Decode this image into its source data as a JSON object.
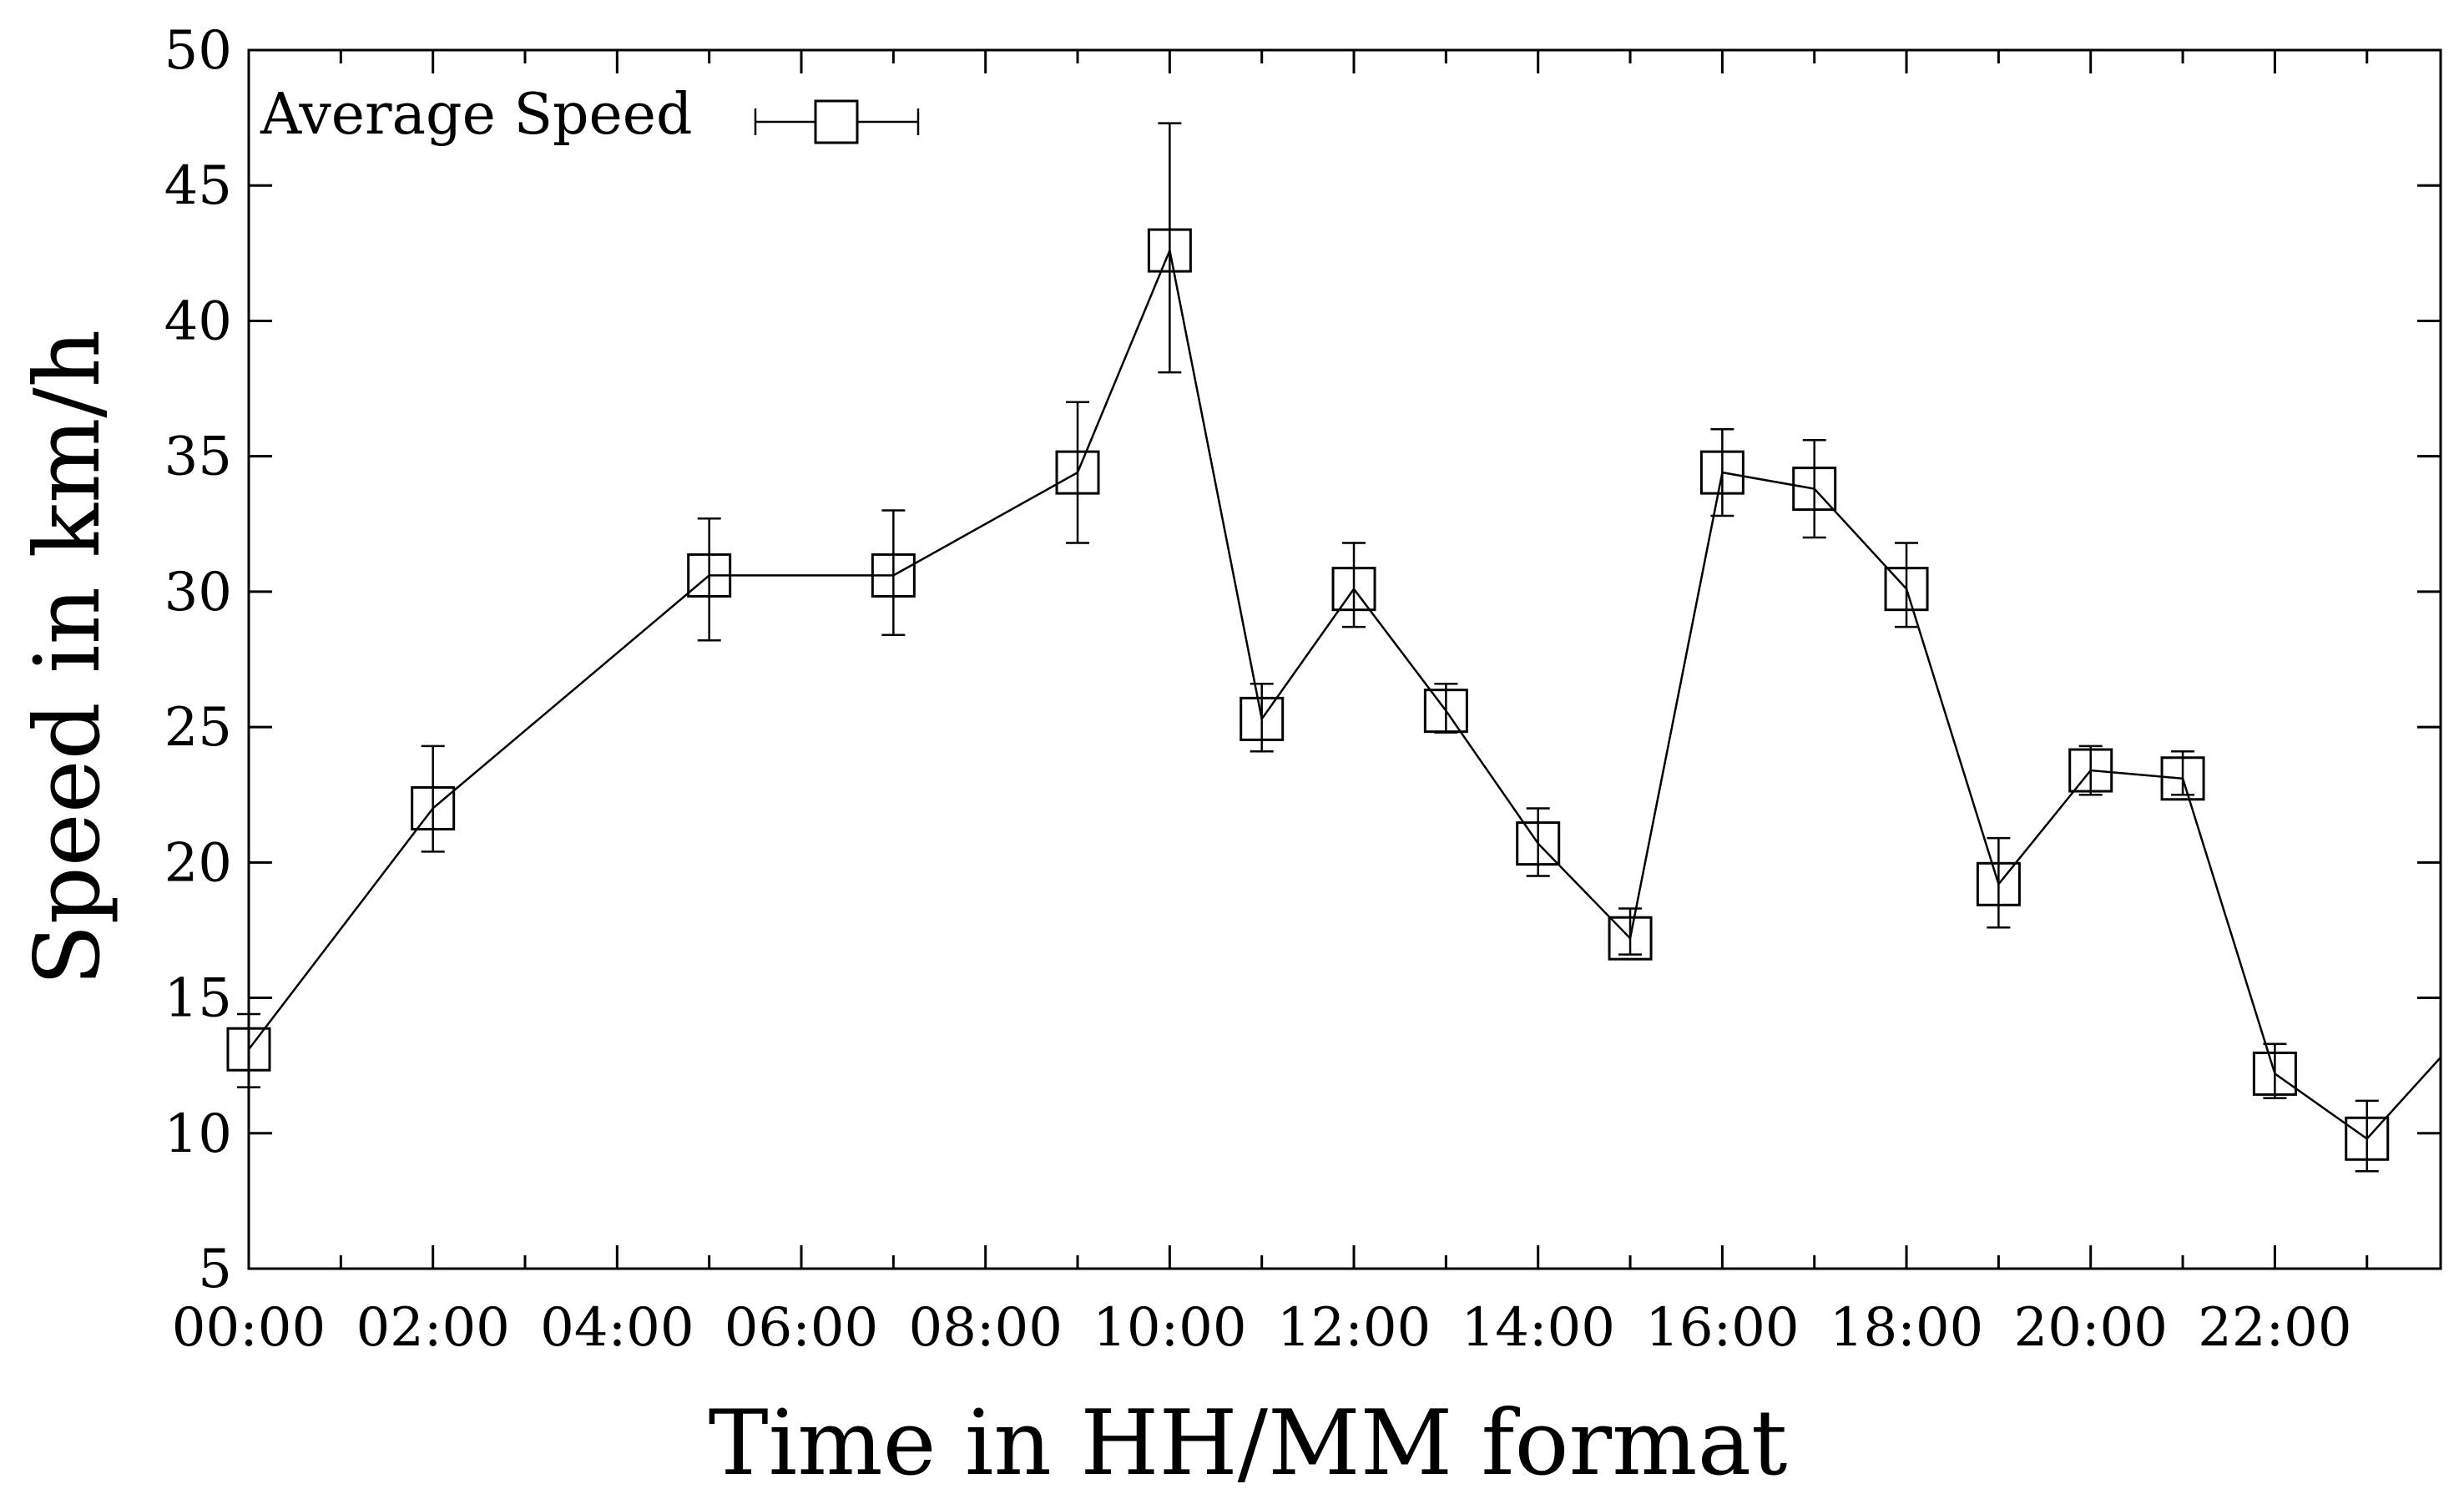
{
  "chart_data": {
    "type": "line",
    "xlabel": "Time in HH/MM format",
    "ylabel": "Speed in km/h",
    "xlim": [
      0,
      23.8
    ],
    "ylim": [
      5,
      50
    ],
    "x_ticks": [
      "00:00",
      "02:00",
      "04:00",
      "06:00",
      "08:00",
      "10:00",
      "12:00",
      "14:00",
      "16:00",
      "18:00",
      "20:00",
      "22:00"
    ],
    "x_tick_values": [
      0,
      2,
      4,
      6,
      8,
      10,
      12,
      14,
      16,
      18,
      20,
      22
    ],
    "x_minor_tick_values": [
      1,
      3,
      5,
      7,
      9,
      11,
      13,
      15,
      17,
      19,
      21,
      23
    ],
    "y_ticks": [
      5,
      10,
      15,
      20,
      25,
      30,
      35,
      40,
      45,
      50
    ],
    "grid": false,
    "legend": {
      "position": "top-left",
      "entries": [
        "Average Speed"
      ]
    },
    "series": [
      {
        "name": "Average Speed",
        "marker": "open-square",
        "color": "#000000",
        "points": [
          {
            "x": 0,
            "y": 13.1,
            "err_low": 11.7,
            "err_high": 14.4
          },
          {
            "x": 2,
            "y": 22.0,
            "err_low": 20.4,
            "err_high": 24.3
          },
          {
            "x": 5,
            "y": 30.6,
            "err_low": 28.2,
            "err_high": 32.7
          },
          {
            "x": 7,
            "y": 30.6,
            "err_low": 28.4,
            "err_high": 33.0
          },
          {
            "x": 9,
            "y": 34.4,
            "err_low": 31.8,
            "err_high": 37.0
          },
          {
            "x": 10,
            "y": 42.6,
            "err_low": 38.1,
            "err_high": 47.3
          },
          {
            "x": 11,
            "y": 25.3,
            "err_low": 24.1,
            "err_high": 26.6
          },
          {
            "x": 12,
            "y": 30.1,
            "err_low": 28.7,
            "err_high": 31.8
          },
          {
            "x": 13,
            "y": 25.6,
            "err_low": 24.8,
            "err_high": 26.6
          },
          {
            "x": 14,
            "y": 20.7,
            "err_low": 19.5,
            "err_high": 22.0
          },
          {
            "x": 15,
            "y": 17.2,
            "err_low": 16.6,
            "err_high": 18.3
          },
          {
            "x": 16,
            "y": 34.4,
            "err_low": 32.8,
            "err_high": 36.0
          },
          {
            "x": 17,
            "y": 33.8,
            "err_low": 32.0,
            "err_high": 35.6
          },
          {
            "x": 18,
            "y": 30.1,
            "err_low": 28.7,
            "err_high": 31.8
          },
          {
            "x": 19,
            "y": 19.2,
            "err_low": 17.6,
            "err_high": 20.9
          },
          {
            "x": 20,
            "y": 23.4,
            "err_low": 22.5,
            "err_high": 24.3
          },
          {
            "x": 21,
            "y": 23.1,
            "err_low": 22.5,
            "err_high": 24.1
          },
          {
            "x": 22,
            "y": 12.2,
            "err_low": 11.3,
            "err_high": 13.3
          },
          {
            "x": 23,
            "y": 9.8,
            "err_low": 8.6,
            "err_high": 11.2
          },
          {
            "x": 23.8,
            "y": 12.8,
            "err_low": 12.8,
            "err_high": 12.8,
            "marker_hidden": true
          }
        ]
      }
    ]
  }
}
